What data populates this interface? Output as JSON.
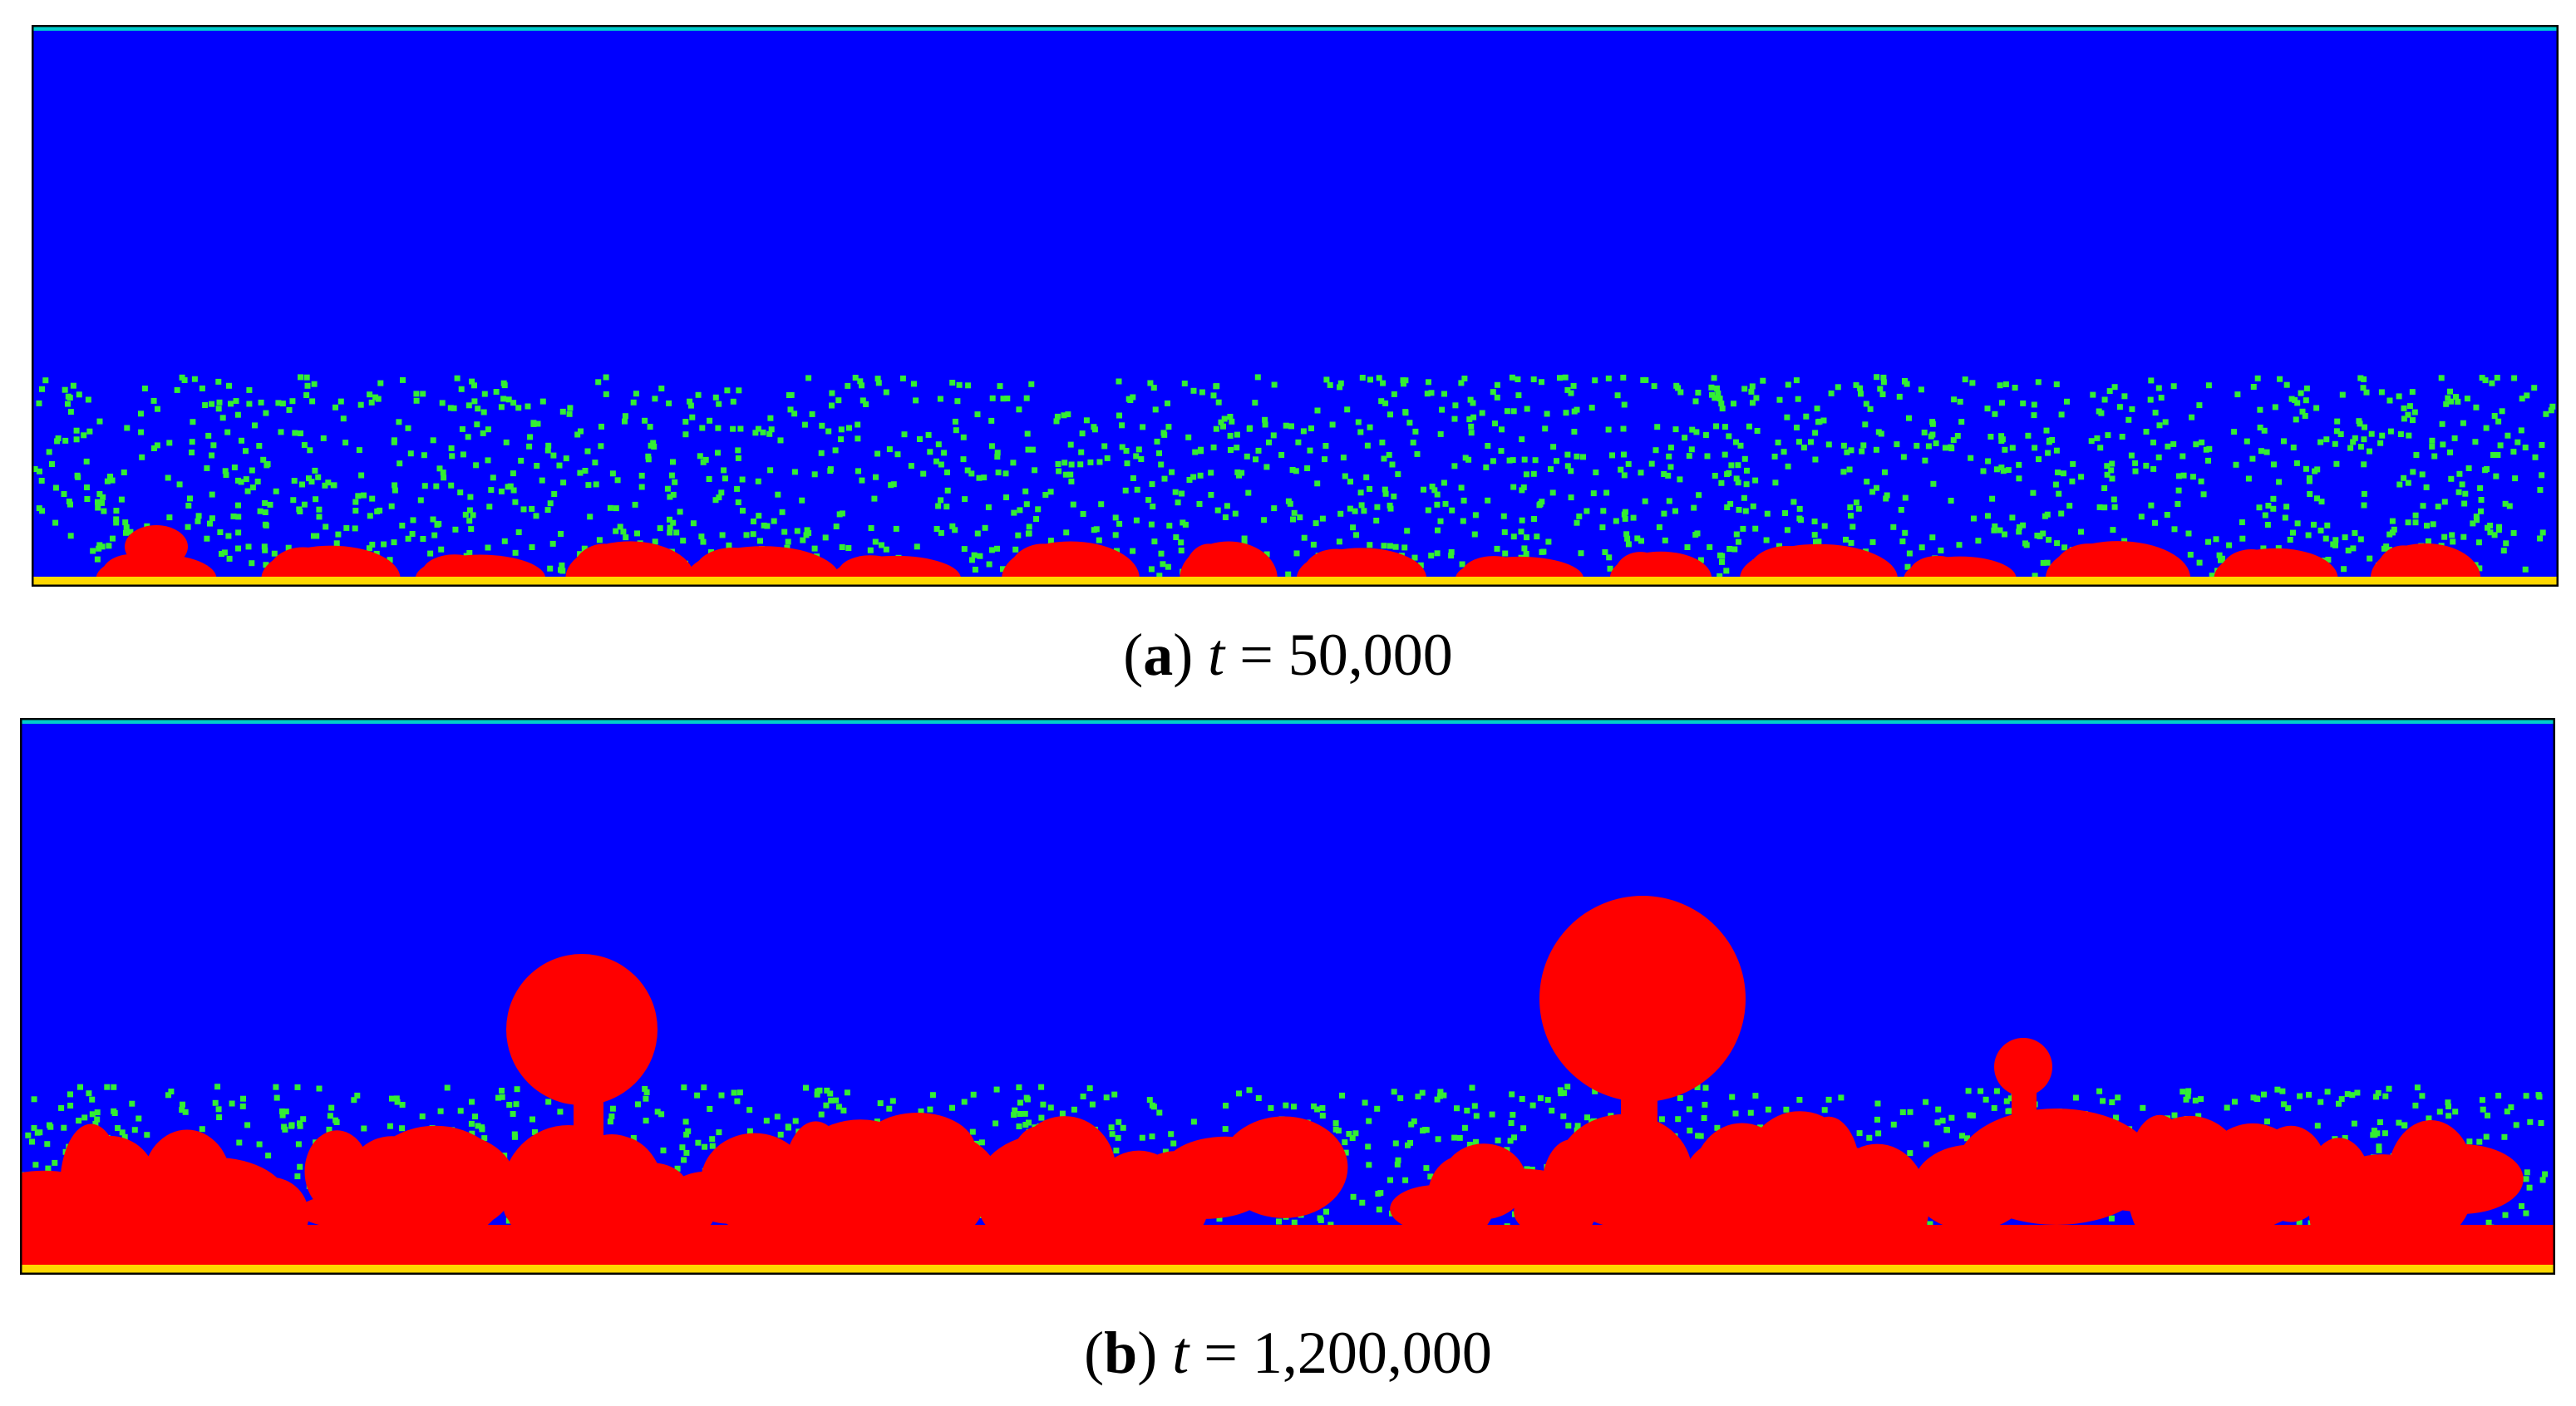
{
  "colors": {
    "vapor": "#0000ff",
    "liquid": "#ff0000",
    "particle": "#33ee33",
    "wall": "#ffd700",
    "top_boundary": "#00cccc",
    "frame": "#000000"
  },
  "panels": [
    {
      "id": "a",
      "caption": {
        "open": "(",
        "letter": "a",
        "close": ")",
        "var": "t",
        "eq": " = ",
        "value": "50,000"
      }
    },
    {
      "id": "b",
      "caption": {
        "open": "(",
        "letter": "b",
        "close": ")",
        "var": "t",
        "eq": " = ",
        "value": "1,200,000"
      }
    }
  ]
}
